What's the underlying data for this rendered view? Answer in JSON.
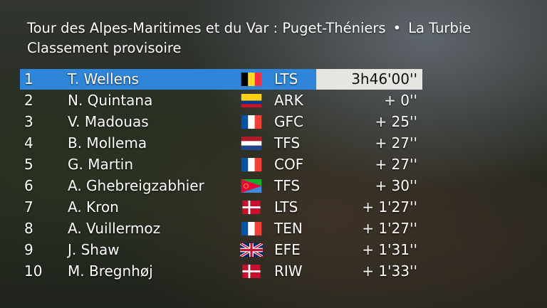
{
  "header": {
    "title_race": "Tour des Alpes-Maritimes et du Var : Puget-Théniers",
    "separator": "•",
    "title_finish": "La Turbie",
    "subtitle": "Classement provisoire"
  },
  "standings": [
    {
      "pos": "1",
      "name": "T. Wellens",
      "flag": "belgium-flag",
      "team": "LTS",
      "time": "3h46'00''"
    },
    {
      "pos": "2",
      "name": "N. Quintana",
      "flag": "colombia-flag",
      "team": "ARK",
      "time": "+ 0''"
    },
    {
      "pos": "3",
      "name": "V. Madouas",
      "flag": "france-flag",
      "team": "GFC",
      "time": "+ 25''"
    },
    {
      "pos": "4",
      "name": "B. Mollema",
      "flag": "netherlands-flag",
      "team": "TFS",
      "time": "+ 27''"
    },
    {
      "pos": "5",
      "name": "G. Martin",
      "flag": "france-flag",
      "team": "COF",
      "time": "+ 27''"
    },
    {
      "pos": "6",
      "name": "A. Ghebreigzabhier",
      "flag": "eritrea-flag",
      "team": "TFS",
      "time": "+ 30''"
    },
    {
      "pos": "7",
      "name": "A. Kron",
      "flag": "denmark-flag",
      "team": "LTS",
      "time": "+ 1'27''"
    },
    {
      "pos": "8",
      "name": "A. Vuillermoz",
      "flag": "france-flag",
      "team": "TEN",
      "time": "+ 1'27''"
    },
    {
      "pos": "9",
      "name": "J. Shaw",
      "flag": "uk-flag",
      "team": "EFE",
      "time": "+ 1'31''"
    },
    {
      "pos": "10",
      "name": "M. Bregnhøj",
      "flag": "denmark-flag",
      "team": "RIW",
      "time": "+ 1'33''"
    }
  ],
  "colors": {
    "leader_bar": "#2f86d9",
    "leader_time_box": "#e5e6e2"
  }
}
